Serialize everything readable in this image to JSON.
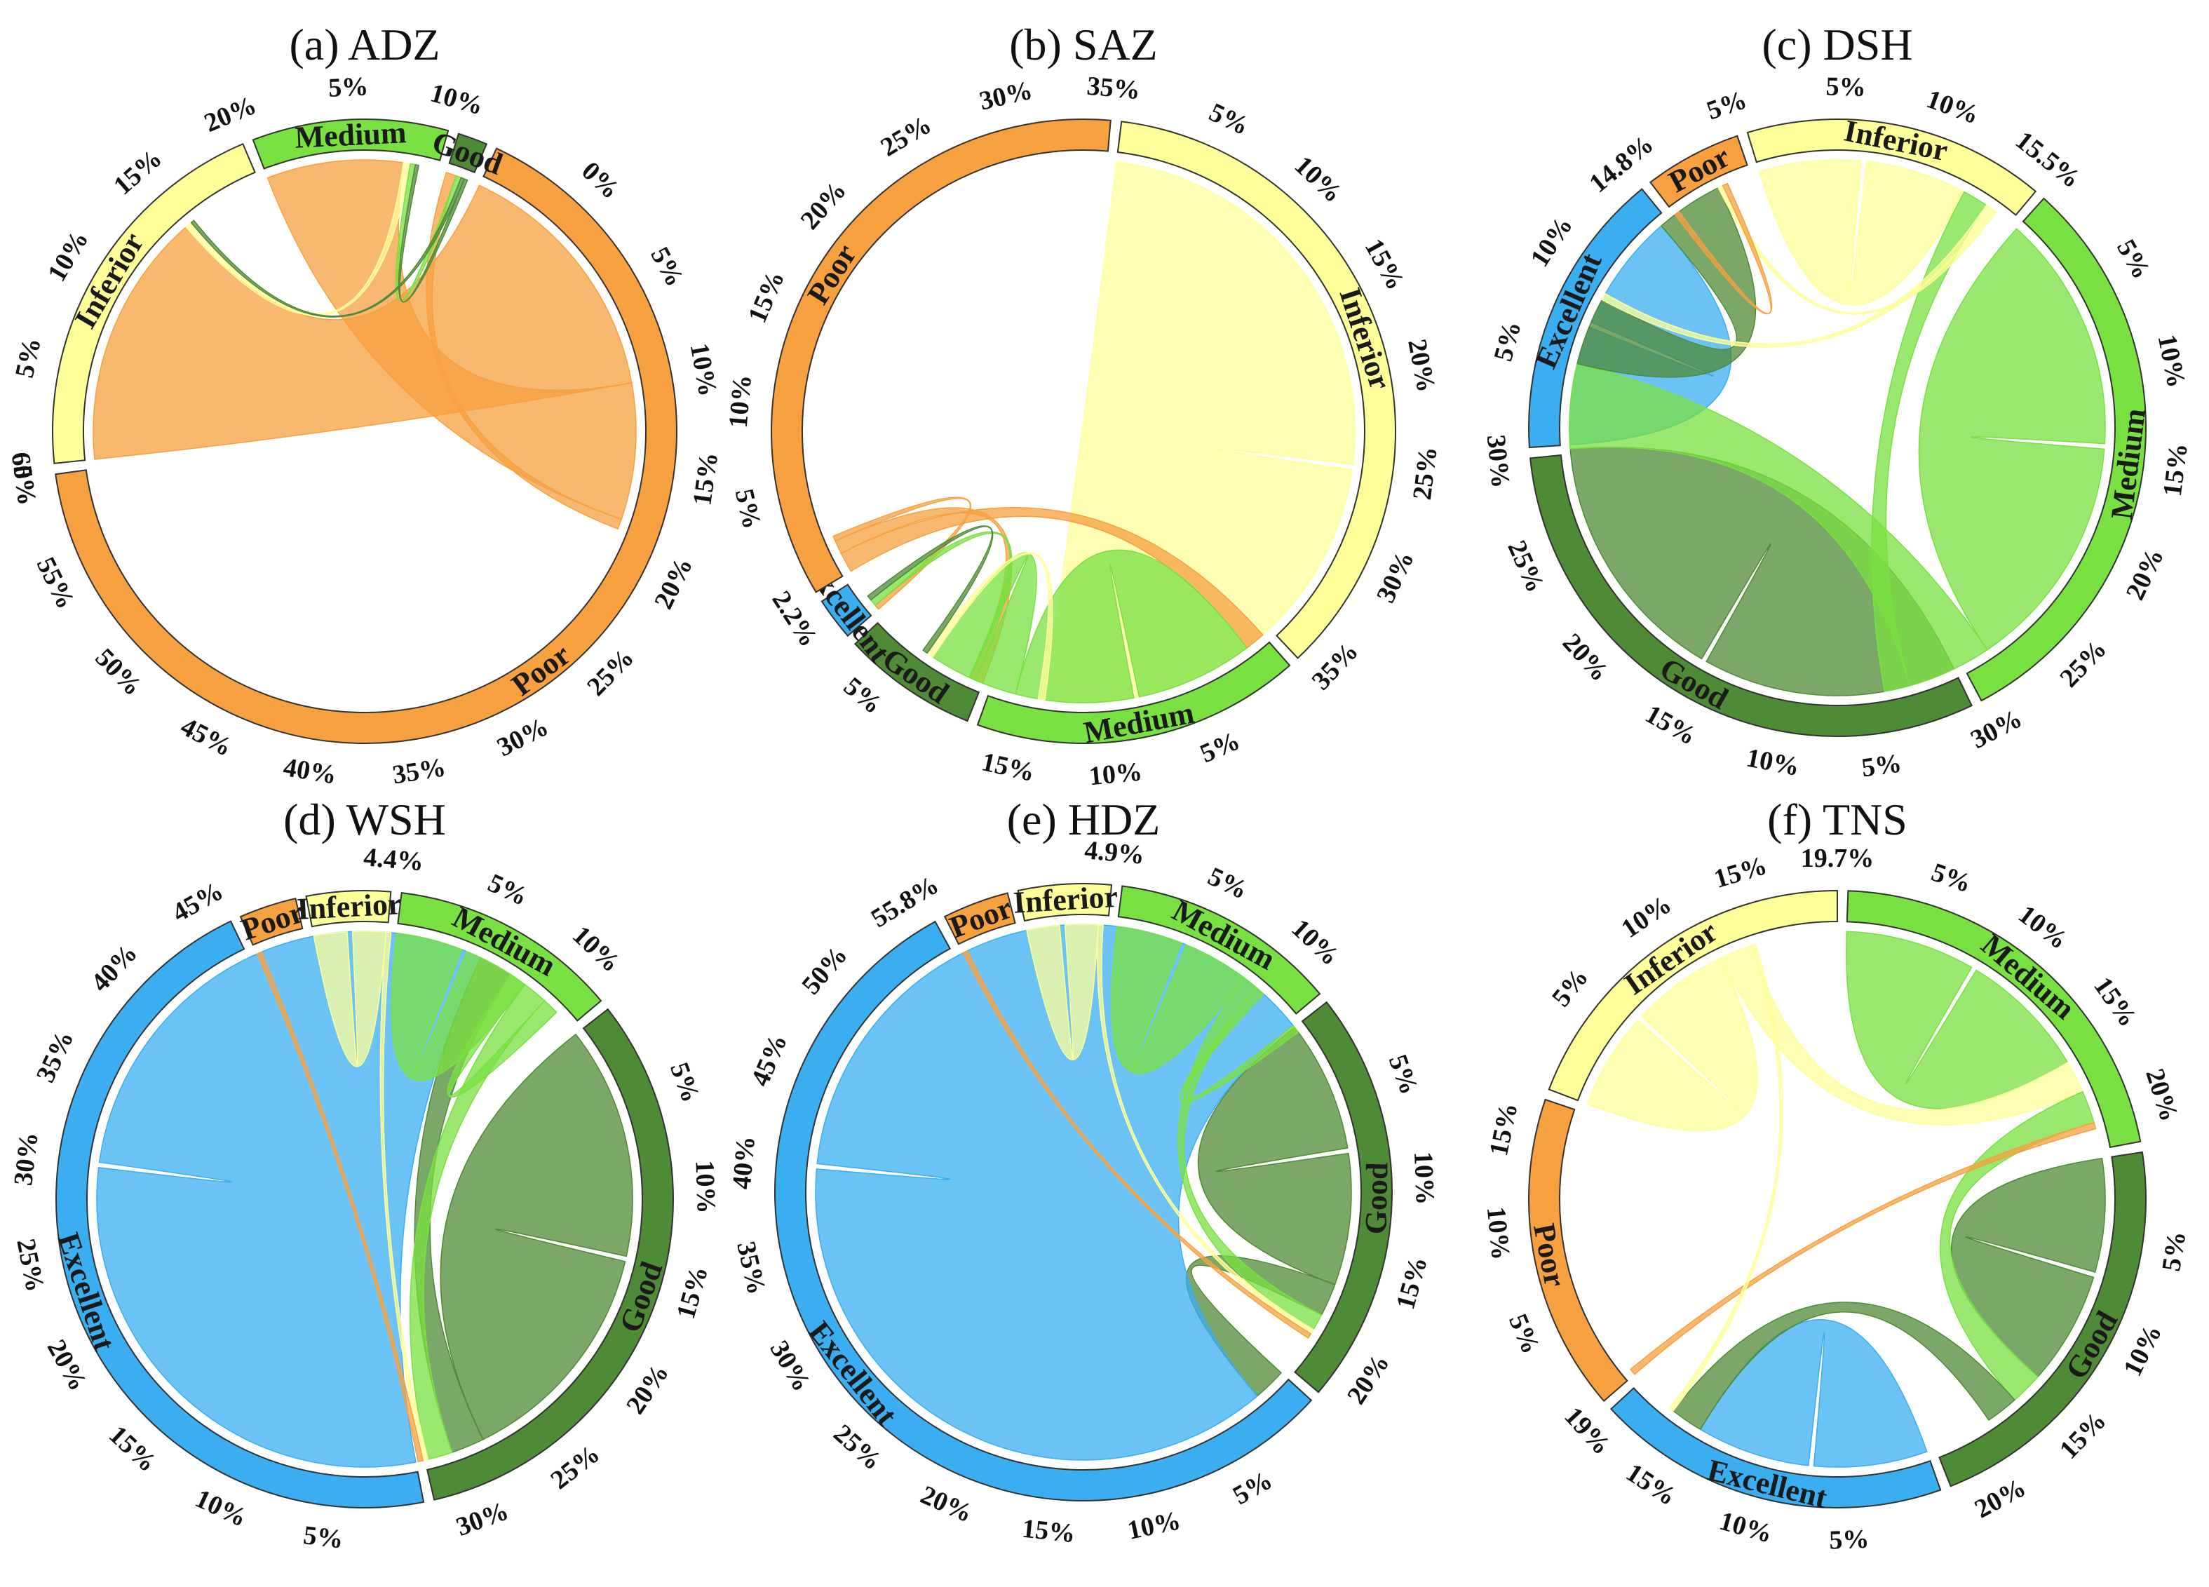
{
  "colors": {
    "Poor": "#f7a040",
    "Inferior": "#ffff99",
    "Medium": "#78e040",
    "Good": "#4f8a36",
    "Excellent": "#3aaef0"
  },
  "chart_data": [
    {
      "type": "chord",
      "title": "(a)  ADZ",
      "segments": [
        {
          "name": "Poor",
          "label": "Poor",
          "size": 65,
          "tick_step": 5,
          "tick_labels": [
            "0%",
            "5%",
            "10%",
            "15%",
            "20%",
            "25%",
            "30%",
            "35%",
            "40%",
            "45%",
            "50%",
            "55%",
            "60%",
            "65%"
          ]
        },
        {
          "name": "Inferior",
          "label": "Inferior",
          "size": 20,
          "tick_step": 5,
          "tick_labels": [
            "5%",
            "10%",
            "15%",
            "20%"
          ]
        },
        {
          "name": "Medium",
          "label": "Medium",
          "size": 10,
          "tick_step": 5,
          "tick_labels": [
            "5%",
            "10%"
          ]
        },
        {
          "name": "Good",
          "label": "Good",
          "size": 1.5,
          "tick_step": 5,
          "tick_labels": []
        }
      ],
      "flows": [
        {
          "from": "Poor",
          "to": "Inferior",
          "value": 15
        },
        {
          "from": "Poor",
          "to": "Medium",
          "value": 8
        },
        {
          "from": "Poor",
          "to": "Good",
          "value": 0.6
        },
        {
          "from": "Inferior",
          "to": "Medium",
          "value": 0.4
        },
        {
          "from": "Medium",
          "to": "Good",
          "value": 0.3
        },
        {
          "from": "Good",
          "to": "Inferior",
          "value": 0.2
        },
        {
          "from": "Good",
          "to": "Medium",
          "value": 0.2
        }
      ]
    },
    {
      "type": "chord",
      "title": "(b)  SAZ",
      "segments": [
        {
          "name": "Inferior",
          "label": "Inferior",
          "size": 36,
          "tick_step": 5,
          "tick_labels": [
            "5%",
            "10%",
            "15%",
            "20%",
            "25%",
            "30%",
            "35%"
          ]
        },
        {
          "name": "Medium",
          "label": "Medium",
          "size": 17,
          "tick_step": 5,
          "tick_labels": [
            "5%",
            "10%",
            "15%"
          ]
        },
        {
          "name": "Good",
          "label": "Good",
          "size": 7,
          "tick_step": 5,
          "tick_labels": [
            "5%"
          ]
        },
        {
          "name": "Excellent",
          "label": "Excellent",
          "size": 2.2,
          "tick_step": 5,
          "tick_labels": [
            "2.2%"
          ]
        },
        {
          "name": "Poor",
          "label": "Poor",
          "size": 35,
          "tick_step": 5,
          "tick_labels": [
            "5%",
            "10%",
            "15%",
            "20%",
            "25%",
            "30%",
            "35%"
          ]
        }
      ],
      "flows": [
        {
          "from": "Inferior",
          "to": "Inferior",
          "value": 25
        },
        {
          "from": "Poor",
          "to": "Medium",
          "value": 1.2
        },
        {
          "from": "Poor",
          "to": "Good",
          "value": 0.8
        },
        {
          "from": "Poor",
          "to": "Excellent",
          "value": 0.3
        },
        {
          "from": "Medium",
          "to": "Medium",
          "value": 7
        },
        {
          "from": "Medium",
          "to": "Good",
          "value": 2.5
        },
        {
          "from": "Medium",
          "to": "Excellent",
          "value": 0.4
        },
        {
          "from": "Inferior",
          "to": "Good",
          "value": 0.4
        },
        {
          "from": "Good",
          "to": "Excellent",
          "value": 0.3
        }
      ]
    },
    {
      "type": "chord",
      "title": "(c)  DSH",
      "segments": [
        {
          "name": "Medium",
          "label": "Medium",
          "size": 30,
          "tick_step": 5,
          "tick_labels": [
            "5%",
            "10%",
            "15%",
            "20%",
            "25%",
            "30%"
          ]
        },
        {
          "name": "Good",
          "label": "Good",
          "size": 30,
          "tick_step": 5,
          "tick_labels": [
            "5%",
            "10%",
            "15%",
            "20%",
            "25%",
            "30%"
          ]
        },
        {
          "name": "Excellent",
          "label": "Excellent",
          "size": 14.8,
          "tick_step": 5,
          "tick_labels": [
            "5%",
            "10%",
            "14.8%"
          ]
        },
        {
          "name": "Poor",
          "label": "Poor",
          "size": 5,
          "tick_step": 5,
          "tick_labels": [
            "5%"
          ]
        },
        {
          "name": "Inferior",
          "label": "Inferior",
          "size": 15.5,
          "tick_step": 5,
          "tick_labels": [
            "5%",
            "10%",
            "15.5%"
          ]
        }
      ],
      "flows": [
        {
          "from": "Medium",
          "to": "Medium",
          "value": 14
        },
        {
          "from": "Good",
          "to": "Good",
          "value": 15
        },
        {
          "from": "Excellent",
          "to": "Excellent",
          "value": 7
        },
        {
          "from": "Inferior",
          "to": "Inferior",
          "value": 6
        },
        {
          "from": "Medium",
          "to": "Good",
          "value": 5
        },
        {
          "from": "Good",
          "to": "Excellent",
          "value": 4
        },
        {
          "from": "Medium",
          "to": "Inferior",
          "value": 1.5
        },
        {
          "from": "Inferior",
          "to": "Good",
          "value": 0.4
        },
        {
          "from": "Inferior",
          "to": "Excellent",
          "value": 0.3
        },
        {
          "from": "Poor",
          "to": "Excellent",
          "value": 0.3
        }
      ]
    },
    {
      "type": "chord",
      "title": "(d)  WSH",
      "segments": [
        {
          "name": "Good",
          "label": "Good",
          "size": 32,
          "tick_step": 5,
          "tick_labels": [
            "5%",
            "10%",
            "15%",
            "20%",
            "25%",
            "30%"
          ]
        },
        {
          "name": "Excellent",
          "label": "Excellent",
          "size": 46,
          "tick_step": 5,
          "tick_labels": [
            "5%",
            "10%",
            "15%",
            "20%",
            "25%",
            "30%",
            "35%",
            "40%",
            "45%"
          ]
        },
        {
          "name": "Poor",
          "label": "Poor",
          "size": 3,
          "tick_step": 5,
          "tick_labels": []
        },
        {
          "name": "Inferior",
          "label": "Inferior",
          "size": 4.4,
          "tick_step": 5,
          "tick_labels": [
            "4.4%"
          ]
        },
        {
          "name": "Medium",
          "label": "Medium",
          "size": 12,
          "tick_step": 5,
          "tick_labels": [
            "5%",
            "10%"
          ]
        }
      ],
      "flows": [
        {
          "from": "Good",
          "to": "Good",
          "value": 14
        },
        {
          "from": "Excellent",
          "to": "Excellent",
          "value": 30
        },
        {
          "from": "Good",
          "to": "Excellent",
          "value": 2
        },
        {
          "from": "Medium",
          "to": "Medium",
          "value": 4
        },
        {
          "from": "Medium",
          "to": "Good",
          "value": 1.5
        },
        {
          "from": "Medium",
          "to": "Excellent",
          "value": 1
        },
        {
          "from": "Inferior",
          "to": "Inferior",
          "value": 2
        },
        {
          "from": "Inferior",
          "to": "Good",
          "value": 0.3
        },
        {
          "from": "Poor",
          "to": "Good",
          "value": 0.3
        }
      ]
    },
    {
      "type": "chord",
      "title": "(e)  HDZ",
      "segments": [
        {
          "name": "Good",
          "label": "Good",
          "size": 22,
          "tick_step": 5,
          "tick_labels": [
            "5%",
            "10%",
            "15%",
            "20%"
          ]
        },
        {
          "name": "Excellent",
          "label": "Excellent",
          "size": 55.8,
          "tick_step": 5,
          "tick_labels": [
            "5%",
            "10%",
            "15%",
            "20%",
            "25%",
            "30%",
            "35%",
            "40%",
            "45%",
            "50%",
            "55.8%"
          ]
        },
        {
          "name": "Poor",
          "label": "Poor",
          "size": 3.5,
          "tick_step": 5,
          "tick_labels": []
        },
        {
          "name": "Inferior",
          "label": "Inferior",
          "size": 4.9,
          "tick_step": 5,
          "tick_labels": [
            "4.9%"
          ]
        },
        {
          "name": "Medium",
          "label": "Medium",
          "size": 12,
          "tick_step": 5,
          "tick_labels": [
            "5%",
            "10%"
          ]
        }
      ],
      "flows": [
        {
          "from": "Good",
          "to": "Good",
          "value": 8
        },
        {
          "from": "Good",
          "to": "Excellent",
          "value": 2
        },
        {
          "from": "Excellent",
          "to": "Excellent",
          "value": 38
        },
        {
          "from": "Medium",
          "to": "Medium",
          "value": 4
        },
        {
          "from": "Medium",
          "to": "Good",
          "value": 1
        },
        {
          "from": "Medium",
          "to": "Excellent",
          "value": 0.5
        },
        {
          "from": "Inferior",
          "to": "Inferior",
          "value": 2
        },
        {
          "from": "Inferior",
          "to": "Good",
          "value": 0.3
        },
        {
          "from": "Poor",
          "to": "Good",
          "value": 0.3
        }
      ]
    },
    {
      "type": "chord",
      "title": "(f)  TNS",
      "segments": [
        {
          "name": "Medium",
          "label": "Medium",
          "size": 22,
          "tick_step": 5,
          "tick_labels": [
            "5%",
            "10%",
            "15%",
            "20%"
          ]
        },
        {
          "name": "Good",
          "label": "Good",
          "size": 22,
          "tick_step": 5,
          "tick_labels": [
            "5%",
            "10%",
            "15%",
            "20%"
          ]
        },
        {
          "name": "Excellent",
          "label": "Excellent",
          "size": 19,
          "tick_step": 5,
          "tick_labels": [
            "5%",
            "10%",
            "15%",
            "19%"
          ]
        },
        {
          "name": "Poor",
          "label": "Poor",
          "size": 17,
          "tick_step": 5,
          "tick_labels": [
            "5%",
            "10%",
            "15%"
          ]
        },
        {
          "name": "Inferior",
          "label": "Inferior",
          "size": 19.7,
          "tick_step": 5,
          "tick_labels": [
            "5%",
            "10%",
            "15%",
            "19.7%"
          ]
        }
      ],
      "flows": [
        {
          "from": "Inferior",
          "to": "Inferior",
          "value": 6
        },
        {
          "from": "Medium",
          "to": "Medium",
          "value": 8
        },
        {
          "from": "Good",
          "to": "Good",
          "value": 7
        },
        {
          "from": "Excellent",
          "to": "Excellent",
          "value": 7
        },
        {
          "from": "Inferior",
          "to": "Medium",
          "value": 2
        },
        {
          "from": "Medium",
          "to": "Good",
          "value": 2
        },
        {
          "from": "Good",
          "to": "Excellent",
          "value": 2
        },
        {
          "from": "Poor",
          "to": "Medium",
          "value": 0.4
        },
        {
          "from": "Inferior",
          "to": "Excellent",
          "value": 0.3
        }
      ]
    }
  ]
}
